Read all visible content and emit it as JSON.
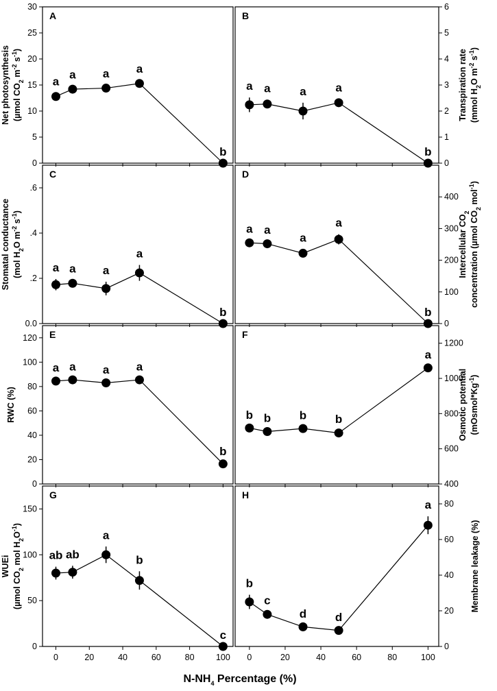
{
  "figure": {
    "x_label_parts": [
      "N-NH",
      "4",
      " Percentage (%)"
    ]
  },
  "chart_data": [
    {
      "panel": "A",
      "type": "line",
      "x": [
        0,
        10,
        30,
        50,
        100
      ],
      "values": [
        12.8,
        14.2,
        14.4,
        15.3,
        0
      ],
      "errors": [
        0.7,
        0.6,
        0.6,
        0.6,
        0
      ],
      "letters": [
        "a",
        "a",
        "a",
        "a",
        "b"
      ],
      "ylim": [
        0,
        30
      ],
      "yticks": [
        0,
        5,
        10,
        15,
        20,
        25,
        30
      ],
      "ytick_labels": [
        "0",
        "5",
        "10",
        "15",
        "20",
        "25",
        "30"
      ],
      "ylabel_lines": [
        [
          "Net photosynthesis"
        ],
        [
          "(µmol CO",
          {
            "sub": "2"
          },
          " m",
          {
            "sup": "-2"
          },
          " s",
          {
            "sup": "-1"
          },
          ")"
        ]
      ],
      "axis_side": "left"
    },
    {
      "panel": "B",
      "type": "line",
      "x": [
        0,
        10,
        30,
        50,
        100
      ],
      "values": [
        2.24,
        2.27,
        2.0,
        2.32,
        0
      ],
      "errors": [
        0.28,
        0.16,
        0.32,
        0.14,
        0
      ],
      "letters": [
        "a",
        "a",
        "a",
        "a",
        "b"
      ],
      "ylim": [
        0,
        6
      ],
      "yticks": [
        0,
        1,
        2,
        3,
        4,
        5,
        6
      ],
      "ytick_labels": [
        "0",
        "1",
        "2",
        "3",
        "4",
        "5",
        "6"
      ],
      "ylabel_lines": [
        [
          "Transpiration rate"
        ],
        [
          "(mmol H",
          {
            "sub": "2"
          },
          "O m",
          {
            "sup": "-2"
          },
          " s",
          {
            "sup": "-1"
          },
          ")"
        ]
      ],
      "axis_side": "right"
    },
    {
      "panel": "C",
      "type": "line",
      "x": [
        0,
        10,
        30,
        50,
        100
      ],
      "values": [
        0.172,
        0.178,
        0.155,
        0.224,
        0
      ],
      "errors": [
        0.025,
        0.015,
        0.03,
        0.035,
        0
      ],
      "letters": [
        "a",
        "a",
        "a",
        "a",
        "b"
      ],
      "ylim": [
        0,
        0.7
      ],
      "yticks": [
        0,
        0.2,
        0.4,
        0.6
      ],
      "ytick_labels": [
        "0.0",
        ".2",
        ".4",
        ".6"
      ],
      "ylabel_lines": [
        [
          "Stomatal conductance"
        ],
        [
          "(mol H",
          {
            "sub": "2"
          },
          "O m",
          {
            "sup": "-2"
          },
          " s",
          {
            "sup": "-1"
          },
          ")"
        ]
      ],
      "axis_side": "left"
    },
    {
      "panel": "D",
      "type": "line",
      "x": [
        0,
        10,
        30,
        50,
        100
      ],
      "values": [
        255,
        252,
        222,
        266,
        0
      ],
      "errors": [
        8,
        8,
        13,
        16,
        0
      ],
      "letters": [
        "a",
        "a",
        "a",
        "a",
        "b"
      ],
      "ylim": [
        0,
        500
      ],
      "yticks": [
        0,
        100,
        200,
        300,
        400
      ],
      "ytick_labels": [
        "0",
        "100",
        "200",
        "300",
        "400"
      ],
      "ylabel_lines": [
        [
          "Intercellular CO",
          {
            "sub": "2"
          }
        ],
        [
          "concentration (µmol CO",
          {
            "sub": "2"
          },
          " mol",
          {
            "sup": "-1"
          },
          ")"
        ]
      ],
      "axis_side": "right"
    },
    {
      "panel": "E",
      "type": "line",
      "x": [
        0,
        10,
        30,
        50,
        100
      ],
      "values": [
        84.5,
        85.5,
        83,
        85.5,
        16.5
      ],
      "errors": [
        1.5,
        1.5,
        1.5,
        1.5,
        1.0
      ],
      "letters": [
        "a",
        "a",
        "a",
        "a",
        "b"
      ],
      "ylim": [
        0,
        130
      ],
      "yticks": [
        0,
        20,
        40,
        60,
        80,
        100,
        120
      ],
      "ytick_labels": [
        "0",
        "20",
        "40",
        "60",
        "80",
        "100",
        "120"
      ],
      "ylabel_lines": [
        [
          "RWC (%)"
        ]
      ],
      "axis_side": "left"
    },
    {
      "panel": "F",
      "type": "line",
      "x": [
        0,
        10,
        30,
        50,
        100
      ],
      "values": [
        718,
        698,
        715,
        690,
        1060
      ],
      "errors": [
        10,
        12,
        10,
        14,
        10
      ],
      "letters": [
        "b",
        "b",
        "b",
        "b",
        "a"
      ],
      "ylim": [
        400,
        1300
      ],
      "yticks": [
        400,
        600,
        800,
        1000,
        1200
      ],
      "ytick_labels": [
        "400",
        "600",
        "800",
        "1000",
        "1200"
      ],
      "ylabel_lines": [
        [
          "Osmotic potential"
        ],
        [
          "(mOsmol*Kg",
          {
            "sup": "-1"
          },
          ")"
        ]
      ],
      "axis_side": "right"
    },
    {
      "panel": "G",
      "type": "line",
      "x": [
        0,
        10,
        30,
        50,
        100
      ],
      "values": [
        80,
        81,
        100,
        72,
        0
      ],
      "errors": [
        7,
        7,
        9,
        10,
        0
      ],
      "letters": [
        "ab",
        "ab",
        "a",
        "b",
        "c"
      ],
      "ylim": [
        0,
        175
      ],
      "yticks": [
        0,
        50,
        100,
        150
      ],
      "ytick_labels": [
        "0",
        "50",
        "100",
        "150"
      ],
      "ylabel_lines": [
        [
          "WUEi"
        ],
        [
          "(µmol CO",
          {
            "sub": "2"
          },
          " mol H",
          {
            "sub": "2"
          },
          "O",
          {
            "sup": "-1"
          },
          ")"
        ]
      ],
      "axis_side": "left"
    },
    {
      "panel": "H",
      "type": "line",
      "x": [
        0,
        10,
        30,
        50,
        100
      ],
      "values": [
        25,
        18,
        11,
        9,
        68
      ],
      "errors": [
        4,
        1.5,
        1,
        1,
        5
      ],
      "letters": [
        "b",
        "c",
        "d",
        "d",
        "a"
      ],
      "ylim": [
        0,
        90
      ],
      "yticks": [
        0,
        20,
        40,
        60,
        80
      ],
      "ytick_labels": [
        "0",
        "20",
        "40",
        "60",
        "80"
      ],
      "ylabel_lines": [
        [
          "Membrane leakage (%)"
        ]
      ],
      "axis_side": "right"
    }
  ],
  "x_axis": {
    "xlim": [
      -8,
      106
    ],
    "ticks": [
      0,
      20,
      40,
      60,
      80,
      100
    ],
    "tick_labels": [
      "0",
      "20",
      "40",
      "60",
      "80",
      "100"
    ]
  }
}
